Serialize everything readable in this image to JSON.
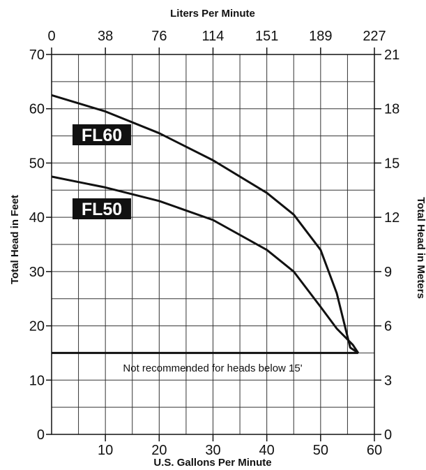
{
  "chart_data": {
    "type": "line",
    "x_bottom": {
      "label": "U.S. Gallons Per Minute",
      "range": [
        0,
        60
      ],
      "ticks": [
        "10",
        "20",
        "30",
        "40",
        "50",
        "60"
      ]
    },
    "x_top": {
      "label": "Liters Per Minute",
      "ticks": [
        "0",
        "38",
        "76",
        "114",
        "151",
        "189",
        "227"
      ]
    },
    "y_left": {
      "label": "Total Head in Feet",
      "range": [
        0,
        70
      ],
      "ticks": [
        "0",
        "10",
        "20",
        "30",
        "40",
        "50",
        "60",
        "70"
      ]
    },
    "y_right": {
      "label": "Total Head in Meters",
      "ticks": [
        "0",
        "3",
        "6",
        "9",
        "12",
        "15",
        "18",
        "21"
      ]
    },
    "grid": true,
    "series": [
      {
        "name": "FL60",
        "points": [
          [
            0,
            62.5
          ],
          [
            10,
            59.5
          ],
          [
            20,
            55.5
          ],
          [
            30,
            50.5
          ],
          [
            40,
            44.5
          ],
          [
            45,
            40.5
          ],
          [
            50,
            34
          ],
          [
            53,
            26
          ],
          [
            54.5,
            20
          ],
          [
            55.5,
            16
          ],
          [
            57,
            15
          ]
        ]
      },
      {
        "name": "FL50",
        "points": [
          [
            0,
            47.5
          ],
          [
            10,
            45.5
          ],
          [
            20,
            43
          ],
          [
            30,
            39.5
          ],
          [
            40,
            34
          ],
          [
            45,
            30
          ],
          [
            50,
            23.5
          ],
          [
            53,
            19.5
          ],
          [
            56,
            16.5
          ],
          [
            57,
            15
          ]
        ]
      }
    ],
    "threshold": {
      "y": 15,
      "x_end": 57,
      "note": "Not recommended for heads below 15'"
    }
  }
}
